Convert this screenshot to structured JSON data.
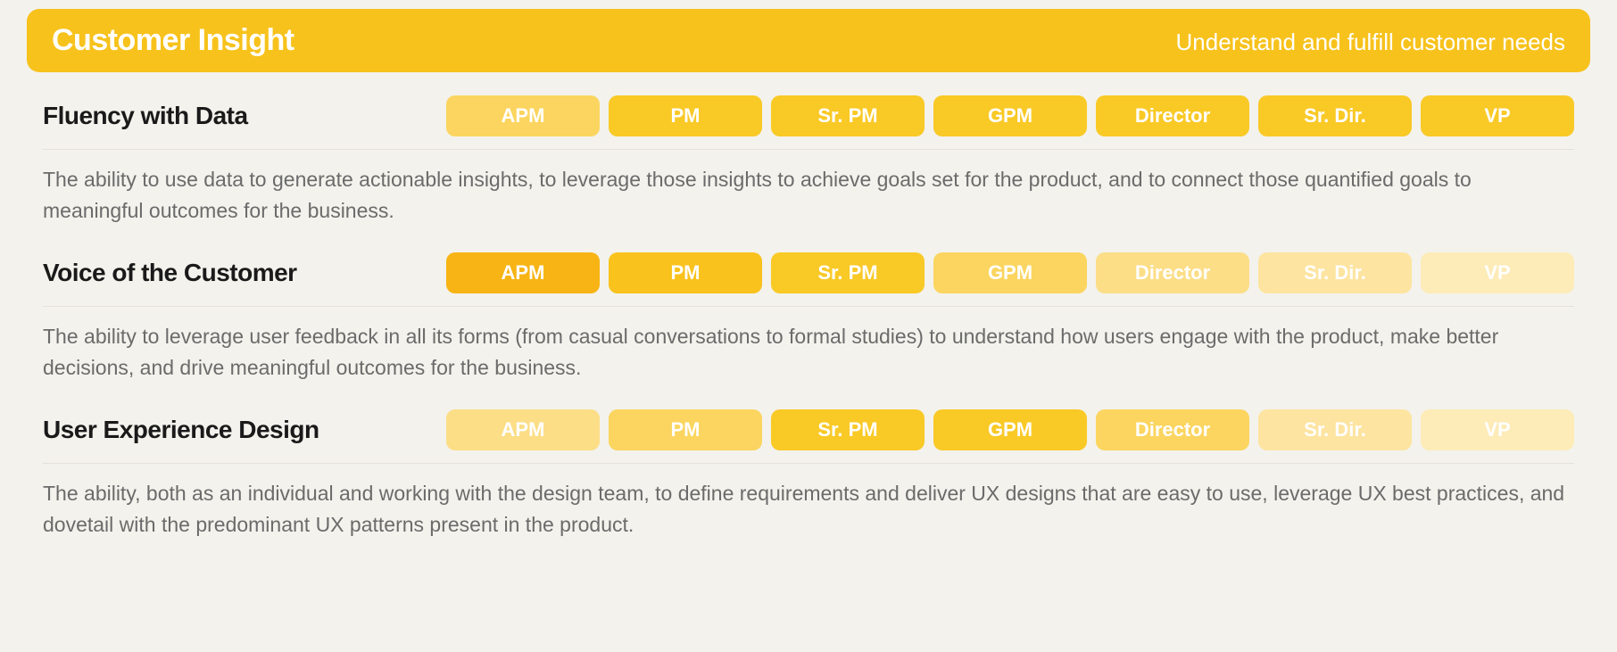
{
  "colors": {
    "page_bg": "#f3f2ec",
    "header_bg": "#f7c21c",
    "header_text": "#ffffff",
    "skill_name_text": "#1a1a1a",
    "desc_text": "#6b6b6b",
    "hr": "#e4e2da",
    "pill_text": "#ffffff",
    "opacity_scale": {
      "selected_strong": 1.0,
      "selected": 0.95,
      "near": 0.75,
      "mid": 0.55,
      "faded": 0.4,
      "faint": 0.3
    }
  },
  "header": {
    "title": "Customer Insight",
    "subtitle": "Understand and fulfill customer needs"
  },
  "levels": [
    "APM",
    "PM",
    "Sr. PM",
    "GPM",
    "Director",
    "Sr. Dir.",
    "VP"
  ],
  "skills": [
    {
      "name": "Fluency with Data",
      "description": "The ability to use data to generate actionable insights, to leverage those insights to achieve goals set for the product, and to connect those quantified goals to meaningful outcomes for the business.",
      "pill_colors": [
        "#fbd55f",
        "#f9c926",
        "#f9c926",
        "#f9c926",
        "#f9c926",
        "#f9c926",
        "#f9c926"
      ]
    },
    {
      "name": "Voice of the Customer",
      "description": "The ability to leverage user feedback in all its forms (from casual conversations to formal studies) to understand how users engage with the product, make better decisions, and drive meaningful outcomes for the business.",
      "pill_colors": [
        "#f7b414",
        "#f9c21c",
        "#f9c926",
        "#fbd55f",
        "#fcde87",
        "#fde4a0",
        "#fdebb8"
      ]
    },
    {
      "name": "User Experience Design",
      "description": "The ability, both as an individual and working with the design team, to define requirements and deliver UX designs that are easy to use, leverage UX best practices, and dovetail with the predominant UX patterns present in the product.",
      "pill_colors": [
        "#fcde87",
        "#fbd55f",
        "#f9c926",
        "#f9c926",
        "#fbd55f",
        "#fde4a0",
        "#fdebb8"
      ]
    }
  ]
}
